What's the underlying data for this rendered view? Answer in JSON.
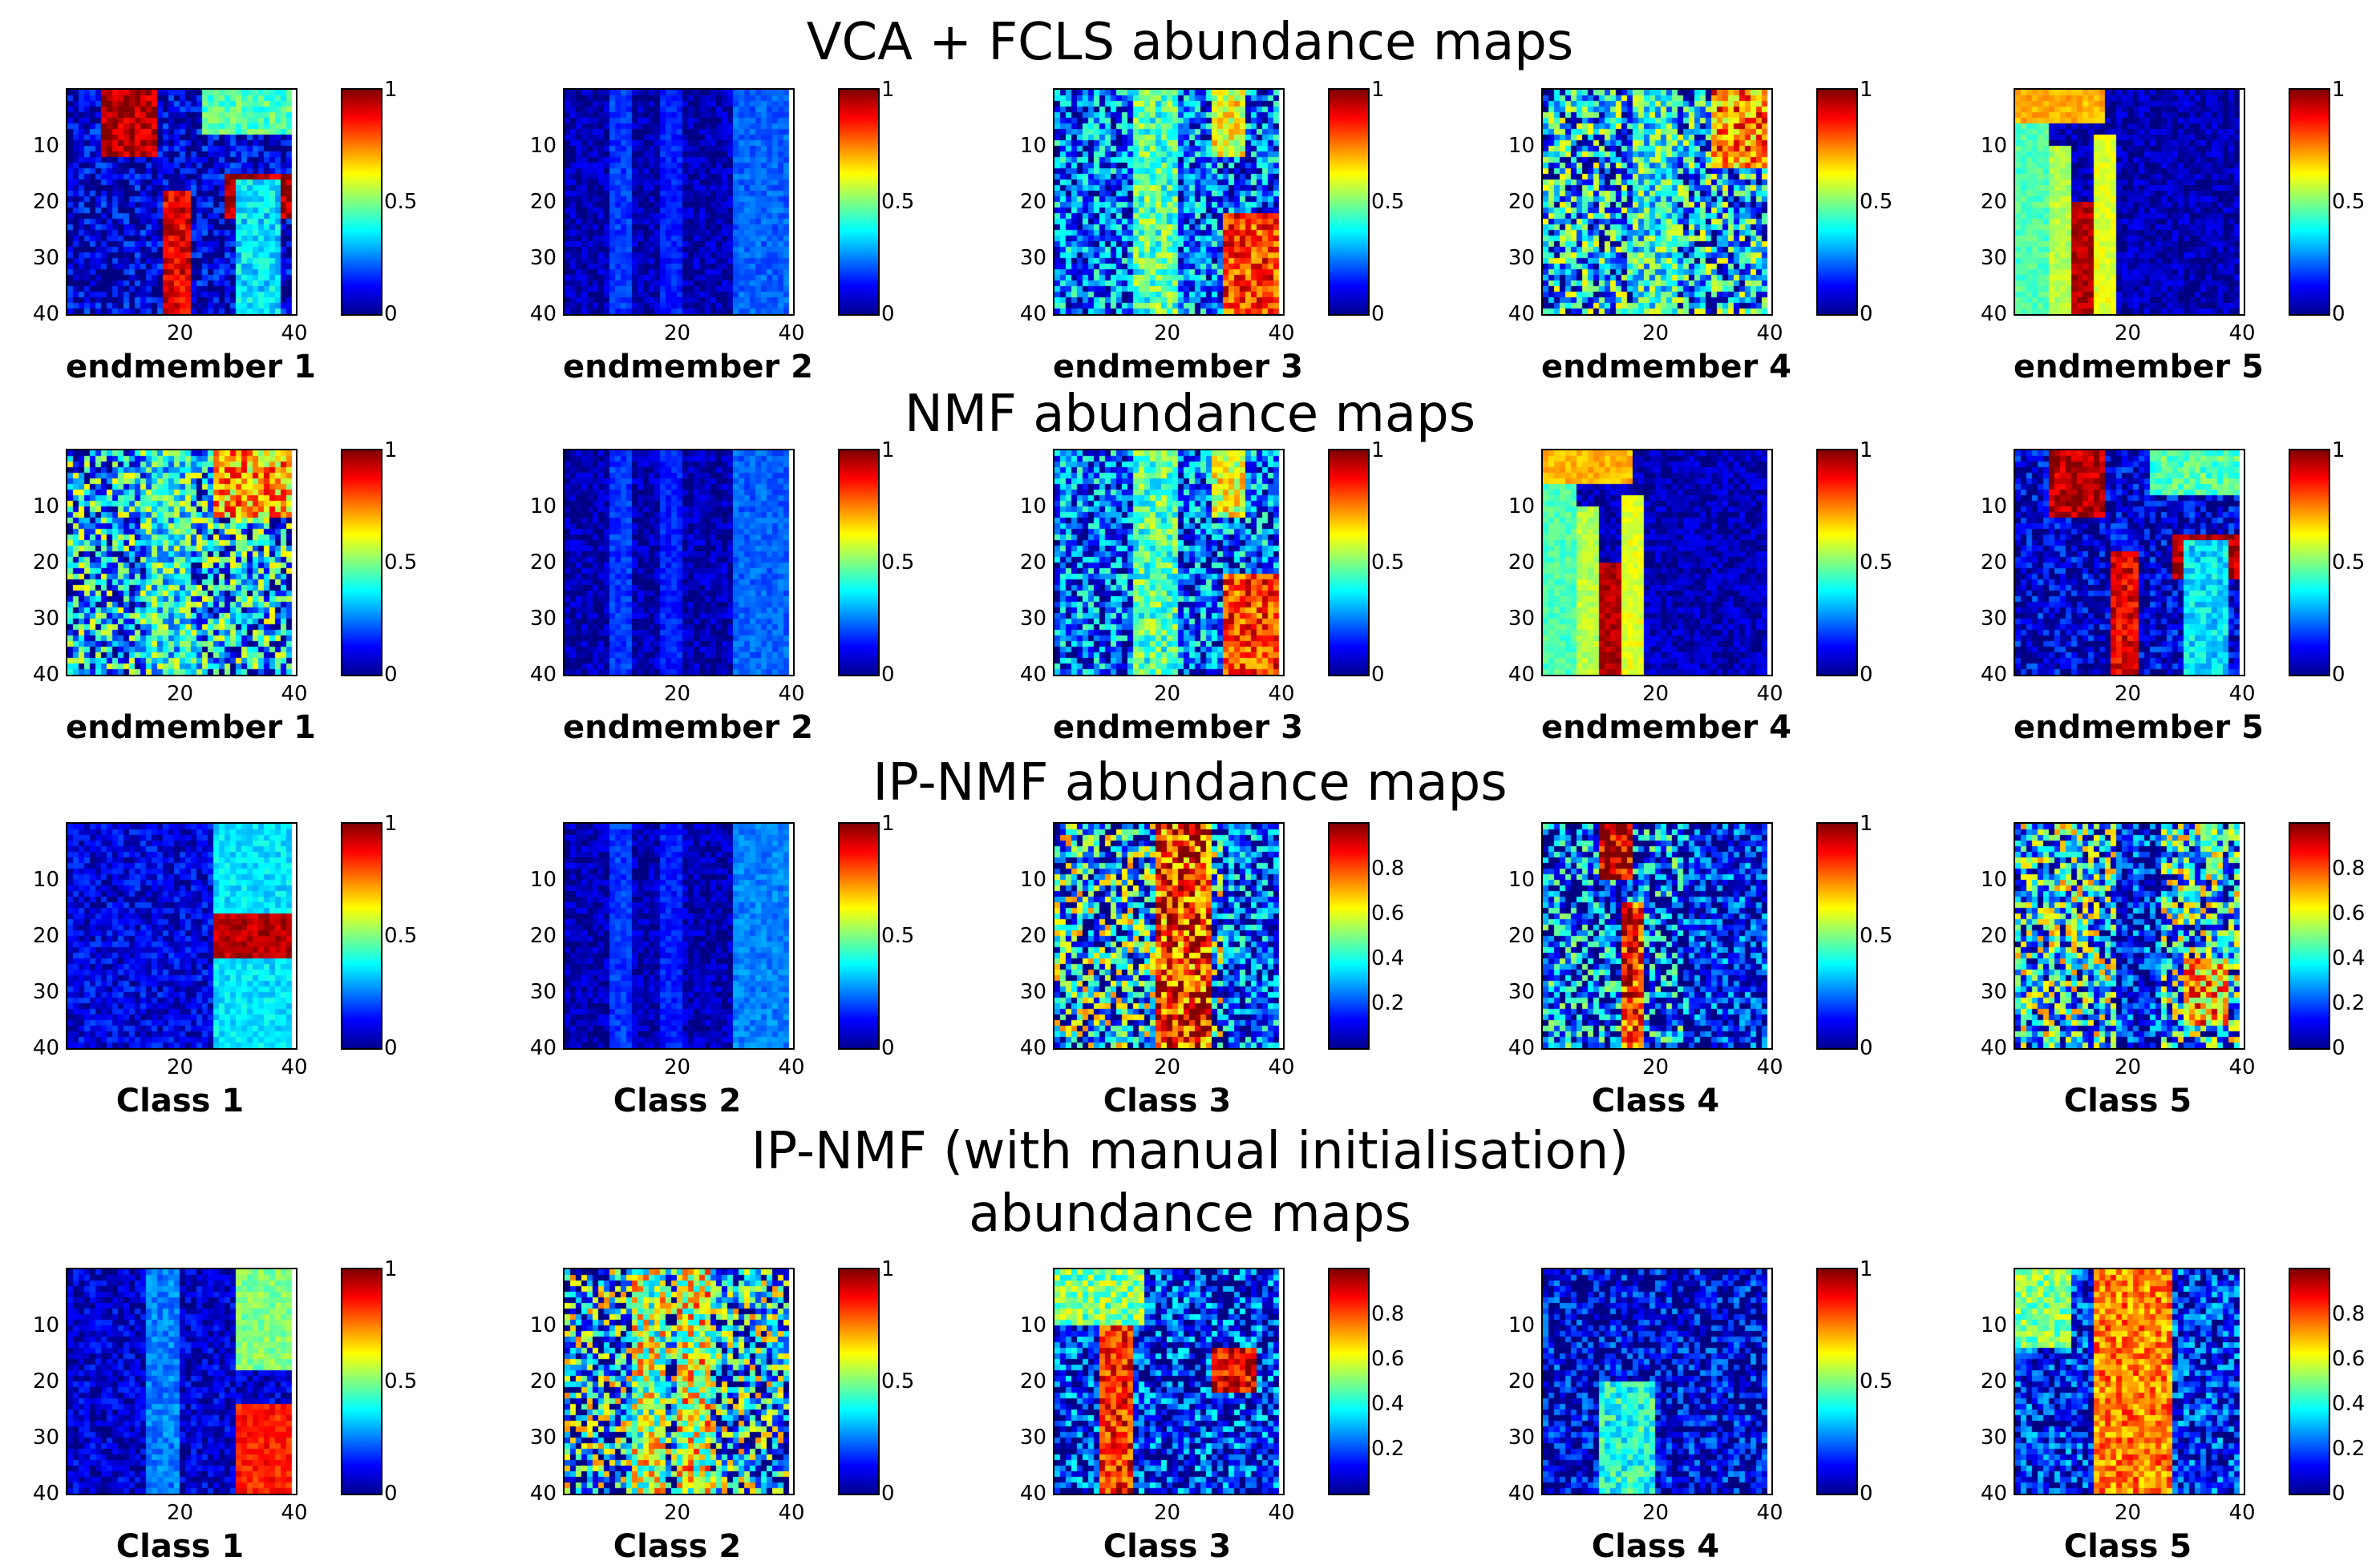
{
  "chart_data": {
    "type": "heatmap",
    "colormap": "jet",
    "grid_size": [
      40,
      40
    ],
    "x_ticks": [
      "20",
      "40"
    ],
    "y_ticks": [
      "10",
      "20",
      "30",
      "40"
    ],
    "rows": [
      {
        "title": "VCA + FCLS abundance maps",
        "panels": [
          {
            "label": "endmember 1",
            "colorbar_ticks": [
              "0",
              "0.5",
              "1"
            ],
            "bg": 0.08,
            "noise": 0.15,
            "blobs": [
              [
                6,
                0,
                10,
                12,
                0.95
              ],
              [
                17,
                18,
                5,
                40,
                0.9
              ],
              [
                24,
                0,
                16,
                8,
                0.45
              ],
              [
                28,
                15,
                12,
                8,
                0.95
              ],
              [
                30,
                16,
                8,
                40,
                0.35
              ]
            ]
          },
          {
            "label": "endmember 2",
            "colorbar_ticks": [
              "0",
              "0.5",
              "1"
            ],
            "bg": 0.05,
            "noise": 0.08,
            "blobs": [
              [
                8,
                0,
                4,
                40,
                0.18
              ],
              [
                17,
                0,
                4,
                40,
                0.15
              ],
              [
                30,
                0,
                10,
                40,
                0.22
              ]
            ]
          },
          {
            "label": "endmember 3",
            "colorbar_ticks": [
              "0",
              "0.5",
              "1"
            ],
            "bg": 0.22,
            "noise": 0.25,
            "blobs": [
              [
                14,
                0,
                8,
                40,
                0.45
              ],
              [
                28,
                0,
                6,
                12,
                0.6
              ],
              [
                30,
                22,
                10,
                18,
                0.82
              ]
            ]
          },
          {
            "label": "endmember 4",
            "colorbar_ticks": [
              "0",
              "0.5",
              "1"
            ],
            "bg": 0.3,
            "noise": 0.35,
            "blobs": [
              [
                30,
                0,
                10,
                14,
                0.75
              ],
              [
                16,
                0,
                8,
                40,
                0.4
              ]
            ]
          },
          {
            "label": "endmember 5",
            "colorbar_ticks": [
              "0",
              "0.5",
              "1"
            ],
            "bg": 0.05,
            "noise": 0.08,
            "blobs": [
              [
                0,
                0,
                6,
                40,
                0.45
              ],
              [
                6,
                10,
                4,
                30,
                0.55
              ],
              [
                10,
                20,
                4,
                20,
                0.95
              ],
              [
                14,
                8,
                4,
                32,
                0.6
              ],
              [
                0,
                0,
                16,
                6,
                0.7
              ]
            ]
          }
        ]
      },
      {
        "title": "NMF abundance maps",
        "panels": [
          {
            "label": "endmember 1",
            "colorbar_ticks": [
              "0",
              "0.5",
              "1"
            ],
            "bg": 0.3,
            "noise": 0.35,
            "blobs": [
              [
                26,
                0,
                14,
                12,
                0.7
              ],
              [
                14,
                0,
                8,
                40,
                0.4
              ]
            ]
          },
          {
            "label": "endmember 2",
            "colorbar_ticks": [
              "0",
              "0.5",
              "1"
            ],
            "bg": 0.05,
            "noise": 0.08,
            "blobs": [
              [
                8,
                0,
                4,
                40,
                0.18
              ],
              [
                17,
                0,
                4,
                40,
                0.15
              ],
              [
                30,
                0,
                10,
                40,
                0.22
              ]
            ]
          },
          {
            "label": "endmember 3",
            "colorbar_ticks": [
              "0",
              "0.5",
              "1"
            ],
            "bg": 0.22,
            "noise": 0.25,
            "blobs": [
              [
                14,
                0,
                8,
                40,
                0.45
              ],
              [
                28,
                0,
                6,
                12,
                0.6
              ],
              [
                30,
                22,
                10,
                18,
                0.82
              ]
            ]
          },
          {
            "label": "endmember 4",
            "colorbar_ticks": [
              "0",
              "0.5",
              "1"
            ],
            "bg": 0.05,
            "noise": 0.08,
            "blobs": [
              [
                0,
                0,
                6,
                40,
                0.45
              ],
              [
                6,
                10,
                4,
                30,
                0.55
              ],
              [
                10,
                20,
                4,
                20,
                0.95
              ],
              [
                14,
                8,
                4,
                32,
                0.6
              ],
              [
                0,
                0,
                16,
                6,
                0.7
              ]
            ]
          },
          {
            "label": "endmember 5",
            "colorbar_ticks": [
              "0",
              "0.5",
              "1"
            ],
            "bg": 0.08,
            "noise": 0.15,
            "blobs": [
              [
                6,
                0,
                10,
                12,
                0.95
              ],
              [
                17,
                18,
                5,
                40,
                0.9
              ],
              [
                24,
                0,
                16,
                8,
                0.45
              ],
              [
                28,
                15,
                12,
                8,
                0.95
              ],
              [
                30,
                16,
                8,
                40,
                0.35
              ]
            ]
          }
        ]
      },
      {
        "title": "IP-NMF abundance maps",
        "panels": [
          {
            "label": "Class 1",
            "colorbar_ticks": [
              "0",
              "0.5",
              "1"
            ],
            "bg": 0.1,
            "noise": 0.1,
            "blobs": [
              [
                26,
                0,
                14,
                40,
                0.35
              ],
              [
                26,
                16,
                14,
                8,
                0.95
              ]
            ]
          },
          {
            "label": "Class 2",
            "colorbar_ticks": [
              "0",
              "0.5",
              "1"
            ],
            "bg": 0.05,
            "noise": 0.08,
            "blobs": [
              [
                8,
                0,
                4,
                40,
                0.18
              ],
              [
                17,
                0,
                4,
                40,
                0.15
              ],
              [
                30,
                0,
                10,
                40,
                0.25
              ]
            ]
          },
          {
            "label": "Class 3",
            "colorbar_ticks": [
              "0.2",
              "0.4",
              "0.6",
              "0.8"
            ],
            "bg": 0.3,
            "noise": 0.45,
            "blobs": [
              [
                18,
                0,
                10,
                40,
                0.85
              ],
              [
                30,
                0,
                10,
                40,
                0.2
              ]
            ]
          },
          {
            "label": "Class 4",
            "colorbar_ticks": [
              "0",
              "0.5",
              "1"
            ],
            "bg": 0.2,
            "noise": 0.35,
            "blobs": [
              [
                10,
                0,
                6,
                10,
                0.95
              ],
              [
                14,
                14,
                4,
                26,
                0.85
              ],
              [
                26,
                0,
                14,
                40,
                0.15
              ]
            ]
          },
          {
            "label": "Class 5",
            "colorbar_ticks": [
              "0",
              "0.2",
              "0.4",
              "0.6",
              "0.8"
            ],
            "bg": 0.35,
            "noise": 0.4,
            "blobs": [
              [
                18,
                0,
                8,
                40,
                0.12
              ],
              [
                30,
                24,
                8,
                12,
                0.7
              ]
            ]
          }
        ]
      },
      {
        "title": "IP-NMF (with manual initialisation)",
        "subtitle": "abundance maps",
        "panels": [
          {
            "label": "Class 1",
            "colorbar_ticks": [
              "0",
              "0.5",
              "1"
            ],
            "bg": 0.08,
            "noise": 0.1,
            "blobs": [
              [
                30,
                0,
                10,
                18,
                0.5
              ],
              [
                30,
                24,
                10,
                16,
                0.85
              ],
              [
                14,
                0,
                6,
                40,
                0.25
              ]
            ]
          },
          {
            "label": "Class 2",
            "colorbar_ticks": [
              "0",
              "0.5",
              "1"
            ],
            "bg": 0.3,
            "noise": 0.45,
            "blobs": [
              [
                12,
                0,
                6,
                40,
                0.55
              ],
              [
                20,
                0,
                6,
                40,
                0.6
              ]
            ]
          },
          {
            "label": "Class 3",
            "colorbar_ticks": [
              "0.2",
              "0.4",
              "0.6",
              "0.8"
            ],
            "bg": 0.15,
            "noise": 0.25,
            "blobs": [
              [
                8,
                10,
                6,
                30,
                0.85
              ],
              [
                28,
                14,
                8,
                8,
                0.9
              ],
              [
                0,
                0,
                16,
                10,
                0.5
              ]
            ]
          },
          {
            "label": "Class 4",
            "colorbar_ticks": [
              "0",
              "0.5",
              "1"
            ],
            "bg": 0.08,
            "noise": 0.2,
            "blobs": [
              [
                10,
                20,
                10,
                20,
                0.4
              ]
            ]
          },
          {
            "label": "Class 5",
            "colorbar_ticks": [
              "0",
              "0.2",
              "0.4",
              "0.6",
              "0.8"
            ],
            "bg": 0.15,
            "noise": 0.2,
            "blobs": [
              [
                14,
                0,
                14,
                40,
                0.75
              ],
              [
                0,
                0,
                10,
                14,
                0.5
              ]
            ]
          }
        ]
      }
    ]
  }
}
